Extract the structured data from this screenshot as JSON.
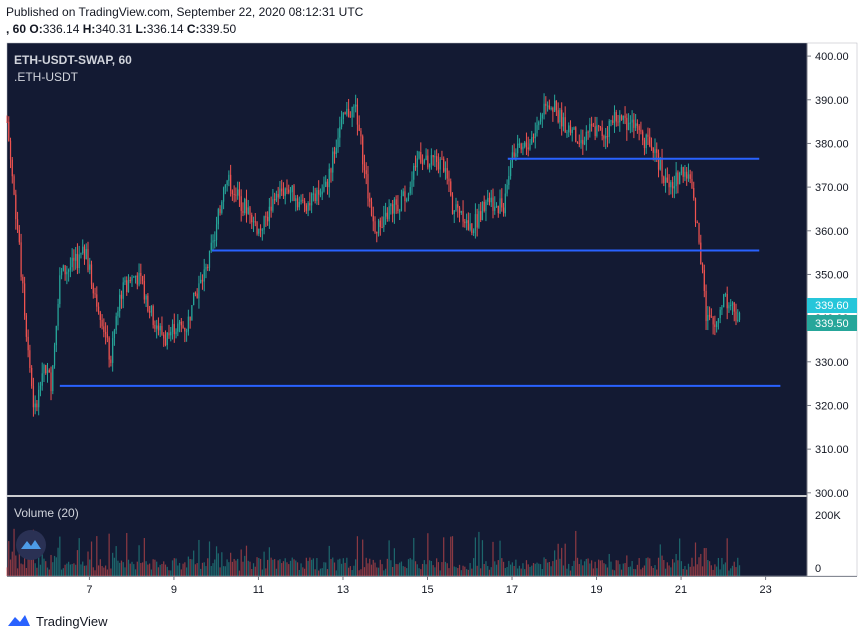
{
  "header": {
    "published": "Published on TradingView.com, September 22, 2020 08:12:31 UTC",
    "ohlc_prefix": ", 60",
    "o_label": "O:",
    "o_value": "336.14",
    "h_label": "H:",
    "h_value": "340.31",
    "l_label": "L:",
    "l_value": "336.14",
    "c_label": "C:",
    "c_value": "339.50"
  },
  "legend": {
    "symbol": "ETH-USDT-SWAP, 60",
    "compare": ".ETH-USDT",
    "volume": "Volume (20)"
  },
  "badges": {
    "secondary_value": "339.60",
    "last_value": "339.50"
  },
  "footer": {
    "brand": "TradingView"
  },
  "colors": {
    "background": "#131a33",
    "up": "#26a69a",
    "down": "#ef5350",
    "hline": "#2962ff",
    "badge_secondary": "#26c6da",
    "badge_last": "#26a69a"
  },
  "chart_data": {
    "type": "candlestick",
    "symbol": "ETH-USDT-SWAP",
    "interval": "60",
    "x_tick_labels": [
      "7",
      "9",
      "11",
      "13",
      "15",
      "17",
      "19",
      "21",
      "23"
    ],
    "x_tick_days": [
      7,
      9,
      11,
      13,
      15,
      17,
      19,
      21,
      23
    ],
    "x_range_days": [
      5.05,
      23.98
    ],
    "price_axis_ticks": [
      300,
      310,
      320,
      330,
      340,
      350,
      360,
      370,
      380,
      390,
      400
    ],
    "price_tick_labels": [
      "300.00",
      "310.00",
      "320.00",
      "330.00",
      "340.00",
      "350.00",
      "360.00",
      "370.00",
      "380.00",
      "390.00",
      "400.00"
    ],
    "ylim": [
      299.5,
      403
    ],
    "volume_axis_labels": [
      "200K",
      "0"
    ],
    "horizontal_levels": [
      {
        "price": 376.5,
        "from_day": 16.9,
        "to_day": 22.85
      },
      {
        "price": 355.5,
        "from_day": 9.9,
        "to_day": 22.85
      },
      {
        "price": 324.5,
        "from_day": 6.3,
        "to_day": 23.35
      }
    ],
    "price_path": [
      [
        5.05,
        385
      ],
      [
        5.3,
        360
      ],
      [
        5.5,
        338
      ],
      [
        5.7,
        318
      ],
      [
        5.9,
        330
      ],
      [
        6.1,
        325
      ],
      [
        6.3,
        350
      ],
      [
        6.6,
        352
      ],
      [
        6.9,
        355
      ],
      [
        7.1,
        347
      ],
      [
        7.3,
        340
      ],
      [
        7.5,
        330
      ],
      [
        7.7,
        345
      ],
      [
        7.9,
        348
      ],
      [
        8.1,
        350
      ],
      [
        8.3,
        346
      ],
      [
        8.5,
        340
      ],
      [
        8.8,
        335
      ],
      [
        9.0,
        338
      ],
      [
        9.3,
        338
      ],
      [
        9.5,
        345
      ],
      [
        9.8,
        352
      ],
      [
        10.0,
        360
      ],
      [
        10.2,
        372
      ],
      [
        10.4,
        370
      ],
      [
        10.6,
        366
      ],
      [
        10.8,
        365
      ],
      [
        11.0,
        360
      ],
      [
        11.2,
        363
      ],
      [
        11.4,
        368
      ],
      [
        11.7,
        370
      ],
      [
        12.0,
        366
      ],
      [
        12.3,
        367
      ],
      [
        12.6,
        370
      ],
      [
        12.9,
        383
      ],
      [
        13.1,
        387
      ],
      [
        13.3,
        388
      ],
      [
        13.5,
        375
      ],
      [
        13.7,
        362
      ],
      [
        13.9,
        360
      ],
      [
        14.1,
        365
      ],
      [
        14.3,
        366
      ],
      [
        14.6,
        370
      ],
      [
        14.8,
        378
      ],
      [
        15.0,
        375
      ],
      [
        15.2,
        376
      ],
      [
        15.4,
        375
      ],
      [
        15.6,
        365
      ],
      [
        15.8,
        365
      ],
      [
        16.0,
        360
      ],
      [
        16.2,
        363
      ],
      [
        16.4,
        368
      ],
      [
        16.6,
        366
      ],
      [
        16.8,
        366
      ],
      [
        17.0,
        378
      ],
      [
        17.2,
        378
      ],
      [
        17.4,
        380
      ],
      [
        17.6,
        384
      ],
      [
        17.8,
        390
      ],
      [
        18.0,
        388
      ],
      [
        18.2,
        385
      ],
      [
        18.4,
        383
      ],
      [
        18.6,
        380
      ],
      [
        18.8,
        383
      ],
      [
        19.0,
        383
      ],
      [
        19.2,
        382
      ],
      [
        19.4,
        386
      ],
      [
        19.6,
        385
      ],
      [
        19.8,
        385
      ],
      [
        20.0,
        382
      ],
      [
        20.2,
        380
      ],
      [
        20.4,
        378
      ],
      [
        20.6,
        372
      ],
      [
        20.8,
        370
      ],
      [
        21.0,
        374
      ],
      [
        21.2,
        372
      ],
      [
        21.4,
        360
      ],
      [
        21.6,
        340
      ],
      [
        21.8,
        338
      ],
      [
        22.0,
        345
      ],
      [
        22.2,
        343
      ],
      [
        22.4,
        339.5
      ]
    ],
    "last_price": 339.5
  }
}
